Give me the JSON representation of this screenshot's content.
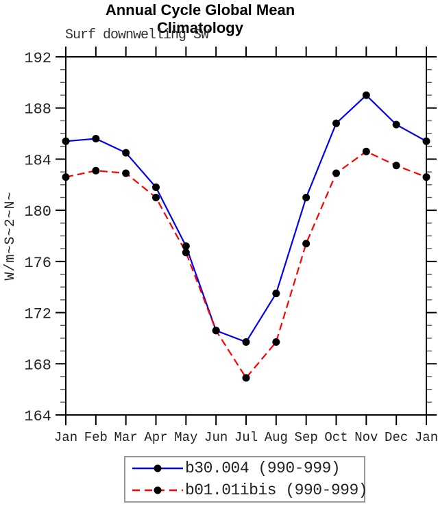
{
  "header": {
    "title": "Annual Cycle Global Mean Climatology",
    "subtitle": "Surf downwelling SW"
  },
  "chart_data": {
    "type": "line",
    "title": "Annual Cycle Global Mean Climatology",
    "subtitle": "Surf downwelling SW",
    "xlabel": "",
    "ylabel": "W/m~S~2~N~",
    "x_categories": [
      "Jan",
      "Feb",
      "Mar",
      "Apr",
      "May",
      "Jun",
      "Jul",
      "Aug",
      "Sep",
      "Oct",
      "Nov",
      "Dec",
      "Jan"
    ],
    "ylim": [
      164,
      192
    ],
    "y_major_ticks": [
      164,
      168,
      172,
      176,
      180,
      184,
      188,
      192
    ],
    "y_minor_tick_step": 1,
    "grid": false,
    "legend_position": "bottom-center",
    "axis_color": "#000000",
    "series": [
      {
        "name": "b30.004 (990-999)",
        "line_style": "solid",
        "line_color": "#0000ee",
        "marker": "filled-circle",
        "marker_color": "#000000",
        "values": [
          185.4,
          185.6,
          184.5,
          181.8,
          177.2,
          170.6,
          169.7,
          173.5,
          181.0,
          186.8,
          189.0,
          186.7,
          185.4
        ]
      },
      {
        "name": "b01.01ibis (990-999)",
        "line_style": "dashed",
        "line_color": "#ff0000",
        "marker": "filled-circle",
        "marker_color": "#000000",
        "values": [
          182.6,
          183.1,
          182.9,
          181.0,
          176.7,
          170.6,
          166.9,
          169.7,
          177.4,
          182.9,
          184.6,
          183.5,
          182.6
        ]
      }
    ]
  }
}
